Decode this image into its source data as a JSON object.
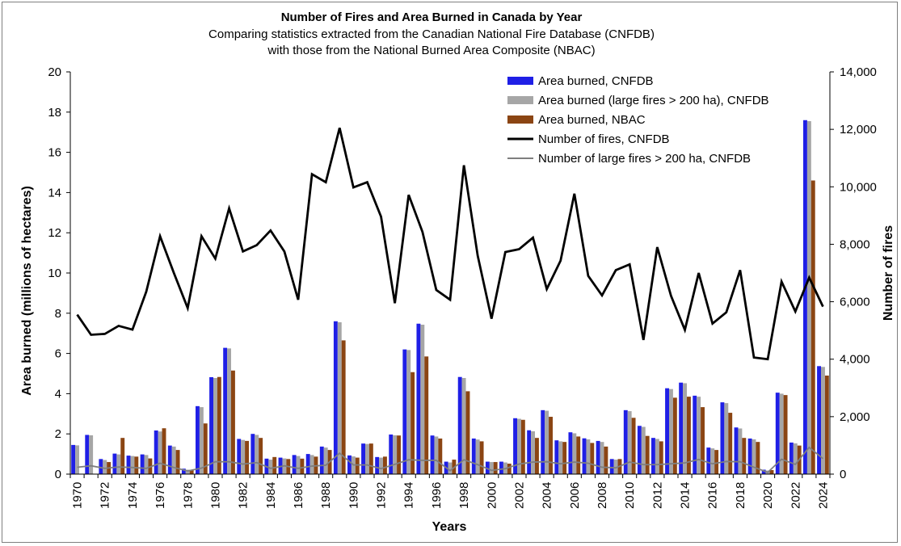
{
  "chart_data": {
    "type": "bar",
    "title": "Number of Fires and Area Burned in Canada by Year",
    "subtitle_lines": [
      "Comparing statistics extracted from the Canadian National Fire Database (CNFDB)",
      "with those from the National Burned Area Composite (NBAC)"
    ],
    "xlabel": "Years",
    "ylabel": "Area burned (millions of hectares)",
    "y2label": "Number of fires",
    "ylim": [
      0,
      20
    ],
    "y2lim": [
      0,
      14000
    ],
    "y_ticks": [
      "0",
      "2",
      "4",
      "6",
      "8",
      "10",
      "12",
      "14",
      "16",
      "18",
      "20"
    ],
    "y2_ticks": [
      "0",
      "2,000",
      "4,000",
      "6,000",
      "8,000",
      "10,000",
      "12,000",
      "14,000"
    ],
    "x": [
      1970,
      1971,
      1972,
      1973,
      1974,
      1975,
      1976,
      1977,
      1978,
      1979,
      1980,
      1981,
      1982,
      1983,
      1984,
      1985,
      1986,
      1987,
      1988,
      1989,
      1990,
      1991,
      1992,
      1993,
      1994,
      1995,
      1996,
      1997,
      1998,
      1999,
      2000,
      2001,
      2002,
      2003,
      2004,
      2005,
      2006,
      2007,
      2008,
      2009,
      2010,
      2011,
      2012,
      2013,
      2014,
      2015,
      2016,
      2017,
      2018,
      2019,
      2020,
      2021,
      2022,
      2023,
      2024
    ],
    "x_tick_labels": [
      "1970",
      "1972",
      "1974",
      "1976",
      "1978",
      "1980",
      "1982",
      "1984",
      "1986",
      "1988",
      "1990",
      "1992",
      "1994",
      "1996",
      "1998",
      "2000",
      "2002",
      "2004",
      "2006",
      "2008",
      "2010",
      "2012",
      "2014",
      "2016",
      "2018",
      "2020",
      "2022",
      "2024"
    ],
    "legend_position": "top-right",
    "grid": false,
    "series": [
      {
        "name": "Area burned, CNFDB",
        "kind": "bar",
        "axis": "left",
        "color": "#1f1fe6",
        "values": [
          1.45,
          1.95,
          0.75,
          1.02,
          0.92,
          0.98,
          2.17,
          1.42,
          0.27,
          3.38,
          4.82,
          6.28,
          1.75,
          2.0,
          0.77,
          0.82,
          0.95,
          1.0,
          1.37,
          7.6,
          0.93,
          1.52,
          0.85,
          1.97,
          6.2,
          7.48,
          1.92,
          0.62,
          4.83,
          1.77,
          0.62,
          0.62,
          2.78,
          2.18,
          3.18,
          1.68,
          2.08,
          1.78,
          1.65,
          0.75,
          3.18,
          2.4,
          1.8,
          4.27,
          4.55,
          3.9,
          1.32,
          3.57,
          2.32,
          1.77,
          0.22,
          4.05,
          1.57,
          17.6,
          5.37
        ]
      },
      {
        "name": "Area burned (large fires > 200 ha), CNFDB",
        "kind": "bar",
        "axis": "left",
        "color": "#a6a6a6",
        "values": [
          1.43,
          1.93,
          0.7,
          0.98,
          0.9,
          0.95,
          2.12,
          1.37,
          0.22,
          3.33,
          4.78,
          6.25,
          1.7,
          1.95,
          0.72,
          0.78,
          0.9,
          0.95,
          1.32,
          7.55,
          0.88,
          1.5,
          0.82,
          1.93,
          6.17,
          7.43,
          1.87,
          0.58,
          4.78,
          1.72,
          0.6,
          0.58,
          2.75,
          2.13,
          3.15,
          1.63,
          2.03,
          1.73,
          1.6,
          0.72,
          3.13,
          2.35,
          1.75,
          4.23,
          4.52,
          3.85,
          1.28,
          3.53,
          2.27,
          1.73,
          0.18,
          4.0,
          1.53,
          17.55,
          5.33
        ]
      },
      {
        "name": "Area burned, NBAC",
        "kind": "bar",
        "axis": "left",
        "color": "#8b4513",
        "values": [
          null,
          null,
          0.6,
          1.8,
          0.87,
          0.78,
          2.28,
          1.2,
          0.2,
          2.52,
          4.83,
          5.15,
          1.65,
          1.8,
          0.85,
          0.75,
          0.77,
          0.87,
          1.2,
          6.65,
          0.82,
          1.52,
          0.87,
          1.92,
          5.07,
          5.85,
          1.77,
          0.72,
          4.12,
          1.63,
          0.6,
          0.52,
          2.7,
          1.8,
          2.85,
          1.6,
          1.87,
          1.55,
          1.37,
          0.75,
          2.8,
          1.9,
          1.63,
          3.8,
          3.85,
          3.33,
          1.2,
          3.05,
          1.8,
          1.6,
          0.2,
          3.93,
          1.42,
          14.6,
          4.9
        ]
      },
      {
        "name": "Number of fires, CNFDB",
        "kind": "line",
        "axis": "right",
        "color": "#000000",
        "values": [
          5550,
          4850,
          4880,
          5160,
          5030,
          6350,
          8280,
          7000,
          5780,
          8280,
          7500,
          9250,
          7750,
          7970,
          8480,
          7750,
          6070,
          10440,
          10160,
          12050,
          9980,
          10160,
          8960,
          5950,
          9720,
          8430,
          6410,
          6070,
          10750,
          7600,
          5410,
          7730,
          7830,
          8230,
          6440,
          7430,
          9760,
          6900,
          6220,
          7100,
          7300,
          4670,
          7900,
          6200,
          5020,
          7000,
          5240,
          5630,
          7100,
          4060,
          4000,
          6700,
          5660,
          6840,
          5830
        ]
      },
      {
        "name": "Number of large fires > 200 ha, CNFDB",
        "kind": "line",
        "axis": "right",
        "color": "#7f7f7f",
        "values": [
          240,
          290,
          200,
          250,
          230,
          200,
          380,
          230,
          110,
          210,
          430,
          430,
          350,
          400,
          200,
          290,
          200,
          280,
          310,
          730,
          320,
          320,
          190,
          340,
          500,
          480,
          480,
          120,
          500,
          330,
          130,
          190,
          350,
          420,
          430,
          360,
          420,
          380,
          240,
          220,
          420,
          330,
          330,
          360,
          390,
          510,
          360,
          440,
          430,
          240,
          60,
          520,
          340,
          930,
          540
        ]
      }
    ]
  }
}
